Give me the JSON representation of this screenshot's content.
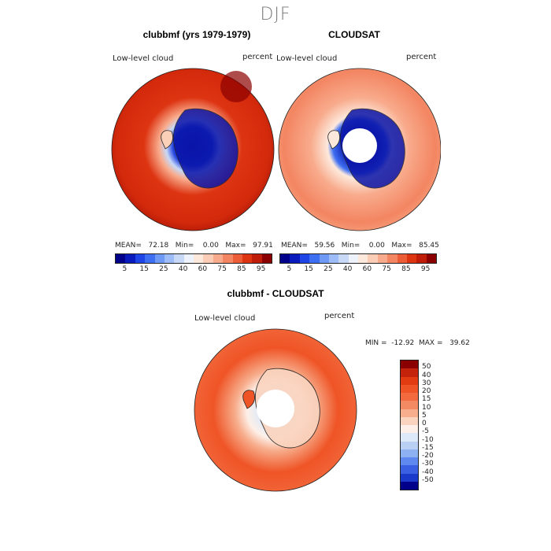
{
  "page_title": "DJF",
  "panels": [
    {
      "title": "clubbmf (yrs 1979-1979)",
      "left_label": "Low-level cloud",
      "right_label": "percent",
      "stats": "MEAN=   72.18   Min=    0.00   Max=   97.91"
    },
    {
      "title": "CLOUDSAT",
      "left_label": "Low-level cloud",
      "right_label": "percent",
      "stats": "MEAN=   59.56   Min=    0.00   Max=   85.45"
    },
    {
      "title": "clubbmf - CLOUDSAT",
      "left_label": "Low-level cloud",
      "right_label": "percent",
      "stats": "MIN =  -12.92  MAX =   39.62"
    }
  ],
  "colorbar_top": {
    "labels": [
      "5",
      "15",
      "25",
      "40",
      "60",
      "75",
      "85",
      "95"
    ],
    "colors": [
      "#00008b",
      "#0a1bbd",
      "#1f45e6",
      "#3e6ef2",
      "#6e99f5",
      "#9ebcf7",
      "#c7d9f7",
      "#eef3fb",
      "#fde9dc",
      "#fbcdb6",
      "#f8ab8c",
      "#f38562",
      "#ec5c36",
      "#dd3412",
      "#bf1d0a",
      "#8b0000"
    ]
  },
  "colorbar_diff": {
    "labels": [
      "50",
      "40",
      "30",
      "20",
      "15",
      "10",
      "5",
      "0",
      "-5",
      "-10",
      "-15",
      "-20",
      "-30",
      "-40",
      "-50"
    ],
    "colors": [
      "#8b0000",
      "#c4220b",
      "#e23b12",
      "#ef5426",
      "#f26a3e",
      "#f48a63",
      "#f7ae8d",
      "#fad4bf",
      "#fdf0e8",
      "#dde9f8",
      "#b9d0f4",
      "#8eb1f1",
      "#5f89ee",
      "#3a5fe3",
      "#1a38c9",
      "#00008b"
    ]
  },
  "colors": {
    "ocean_high": "#d42a0c",
    "ocean_mid": "#f07a50",
    "ocean_light": "#fbd0b8",
    "ice_low": "#0a14a8",
    "coast": "#222222"
  }
}
